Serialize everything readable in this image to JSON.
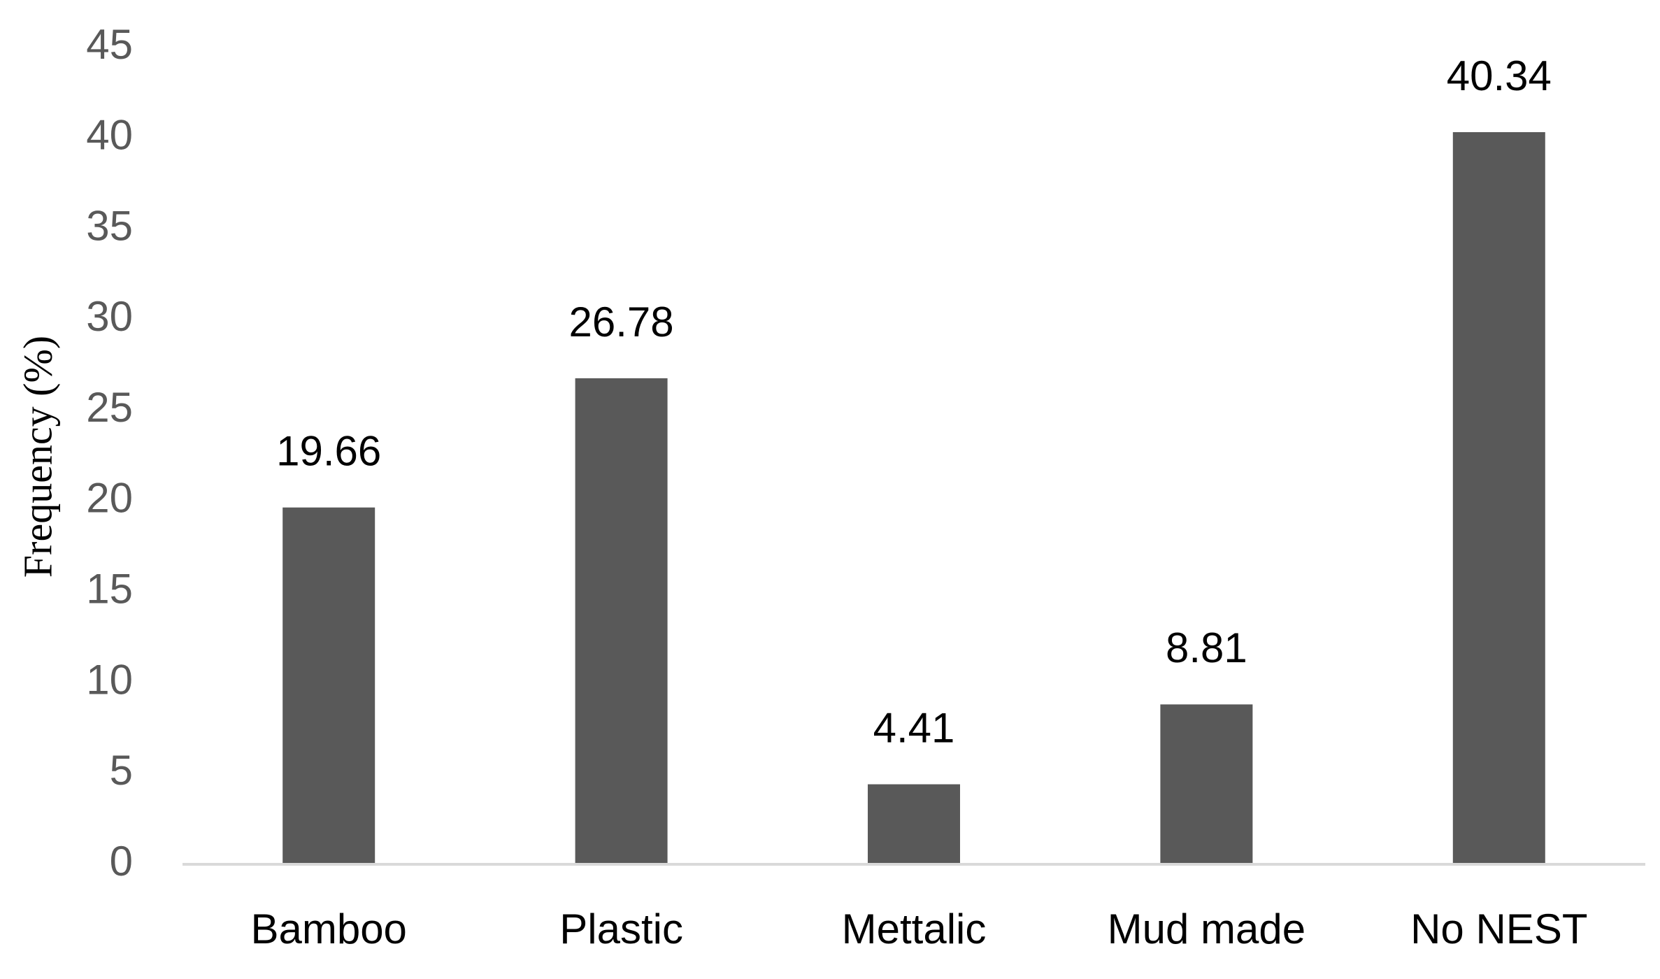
{
  "chart_data": {
    "type": "bar",
    "y_label": "Frequency (%)",
    "categories": [
      "Bamboo",
      "Plastic",
      "Mettalic",
      "Mud made",
      "No NEST"
    ],
    "values": [
      19.66,
      26.78,
      4.41,
      8.81,
      40.34
    ],
    "color": "#595959",
    "ylim": [
      0,
      45
    ],
    "yticks": [
      0,
      5,
      10,
      15,
      20,
      25,
      30,
      35,
      40,
      45
    ],
    "grid": false,
    "data_labels": true
  }
}
